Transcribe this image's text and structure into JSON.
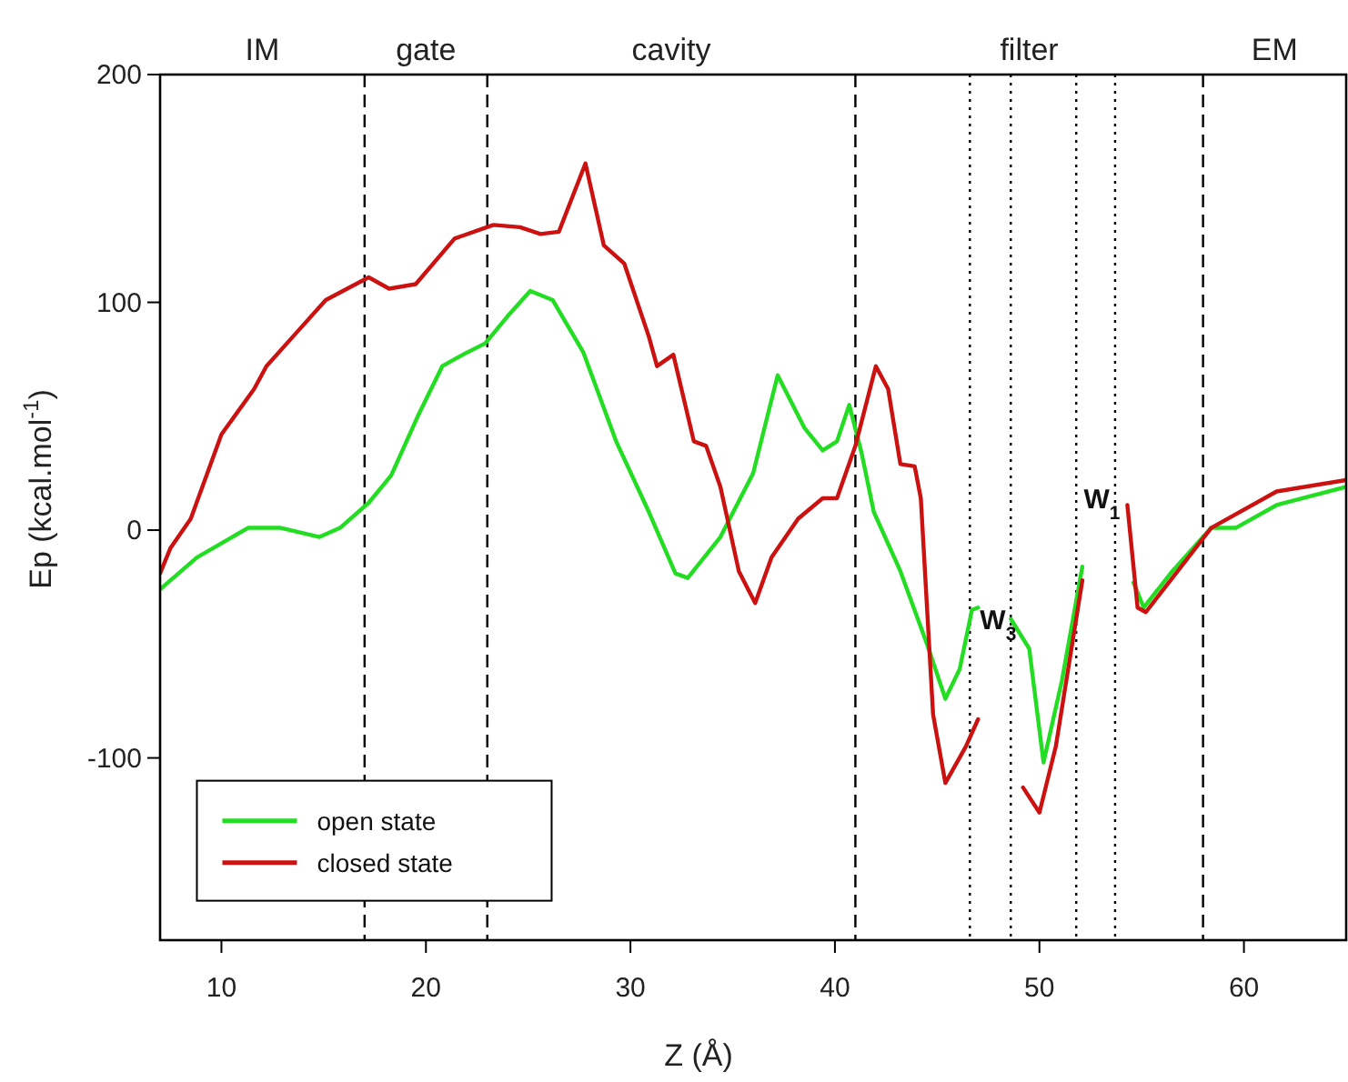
{
  "chart_data": {
    "type": "line",
    "xlabel": "Z (Å)",
    "ylabel": "Ep (kcal.mol$^{-1}$)",
    "xlim": [
      7,
      65
    ],
    "ylim": [
      -180,
      200
    ],
    "xticks": [
      10,
      20,
      30,
      40,
      50,
      60
    ],
    "yticks": [
      -100,
      0,
      100,
      200
    ],
    "grid": false,
    "legend": "bottom left",
    "marker": "none",
    "line_style": "solid",
    "series": [
      {
        "name": "open state",
        "color": "#22dd22",
        "x": [
          7.0,
          8.8,
          11.3,
          12.9,
          14.8,
          15.8,
          17.2,
          18.3,
          19.6,
          20.8,
          21.8,
          22.9,
          24.0,
          25.1,
          26.2,
          27.7,
          29.3,
          30.9,
          32.2,
          32.8,
          34.4,
          36.0,
          37.2,
          38.5,
          39.4,
          40.1,
          40.7,
          41.3,
          41.9,
          43.2,
          44.5,
          45.4,
          46.1,
          46.7,
          47.0,
          47.8,
          48.6,
          49.5,
          50.2,
          51.1,
          52.1,
          53.2,
          54.6,
          55.1,
          56.5,
          58.4,
          59.6,
          61.6,
          65
        ],
        "values": [
          -26,
          -12,
          1,
          1,
          -3,
          1,
          12,
          24,
          50,
          72,
          77,
          82,
          94,
          105,
          101,
          78,
          39,
          8,
          -19,
          -21,
          -3,
          25,
          68,
          45,
          35,
          39,
          55,
          34,
          8,
          -18,
          -50,
          -74,
          -61,
          -35,
          -34,
          null,
          -39,
          -52,
          -102,
          -66,
          -16,
          null,
          -23,
          -34,
          -18,
          1,
          1,
          11,
          19
        ]
      },
      {
        "name": "closed state",
        "color": "#cc1111",
        "x": [
          7.0,
          7.5,
          8.5,
          10.0,
          11.6,
          12.2,
          13.5,
          15.1,
          17.2,
          18.2,
          19.5,
          21.4,
          23.3,
          24.6,
          25.6,
          26.5,
          27.8,
          28.7,
          29.7,
          30.9,
          31.3,
          32.1,
          33.1,
          33.7,
          34.4,
          35.3,
          36.1,
          36.9,
          38.2,
          39.4,
          40.1,
          41.0,
          42.0,
          42.6,
          43.2,
          43.9,
          44.2,
          44.8,
          45.4,
          46.4,
          47.0,
          48.1,
          49.2,
          50.0,
          50.8,
          52.1,
          53.2,
          54.3,
          54.8,
          55.2,
          56.5,
          58.4,
          61.6,
          65
        ],
        "values": [
          -19,
          -8,
          5,
          42,
          62,
          72,
          85,
          101,
          111,
          106,
          108,
          128,
          134,
          133,
          130,
          131,
          161,
          125,
          117,
          85,
          72,
          77,
          39,
          37,
          19,
          -18,
          -32,
          -12,
          5,
          14,
          14,
          37,
          72,
          62,
          29,
          28,
          14,
          -81,
          -111,
          -95,
          -83,
          null,
          -113,
          -124,
          -95,
          -22,
          null,
          11,
          -34,
          -36,
          -21,
          1,
          17,
          22
        ]
      }
    ],
    "ref_lines": [
      {
        "axis": "x",
        "value": 17,
        "line_style": "dashed",
        "color": "#000000"
      },
      {
        "axis": "x",
        "value": 23,
        "line_style": "dashed",
        "color": "#000000"
      },
      {
        "axis": "x",
        "value": 41,
        "line_style": "dashed",
        "color": "#000000"
      },
      {
        "axis": "x",
        "value": 58,
        "line_style": "dashed",
        "color": "#000000"
      },
      {
        "axis": "x",
        "value": 46.6,
        "line_style": "dotted",
        "color": "#000000"
      },
      {
        "axis": "x",
        "value": 48.6,
        "line_style": "dotted",
        "color": "#000000"
      },
      {
        "axis": "x",
        "value": 51.8,
        "line_style": "dotted",
        "color": "#000000"
      },
      {
        "axis": "x",
        "value": 53.7,
        "line_style": "dotted",
        "color": "#000000"
      }
    ],
    "annotations": [
      "IM",
      "gate",
      "cavity",
      "filter",
      "EM",
      "W$_{3}$",
      "W$_{1}$"
    ]
  }
}
